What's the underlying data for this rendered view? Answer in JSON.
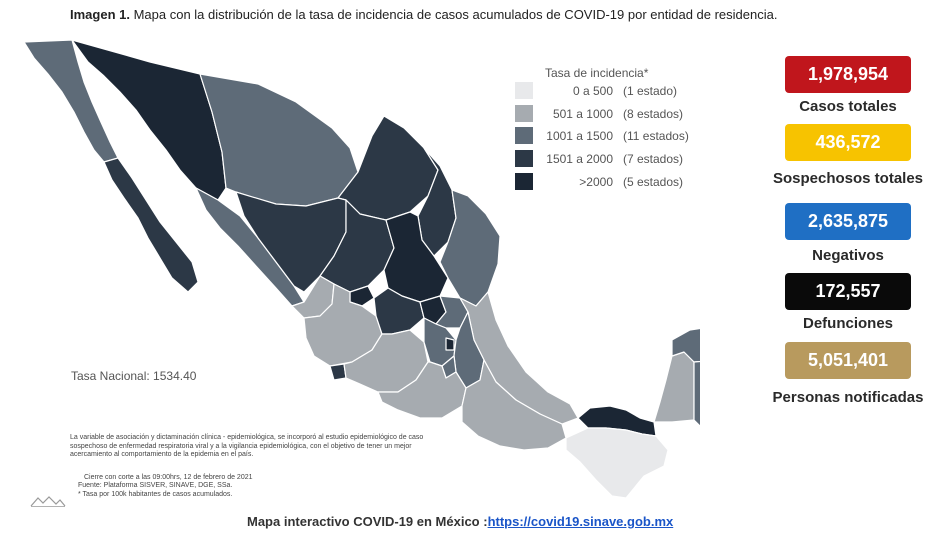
{
  "title": {
    "label": "Imagen 1.",
    "text": "Mapa con la distribución de la tasa de incidencia de casos acumulados de COVID-19 por entidad de residencia."
  },
  "legend": {
    "title": "Tasa de incidencia*",
    "rows": [
      {
        "range": "0 a  500",
        "count": "(1 estado)",
        "color": "#e8e9eb"
      },
      {
        "range": "501 a  1000",
        "count": "(8 estados)",
        "color": "#a6abb0"
      },
      {
        "range": "1001 a  1500",
        "count": "(11 estados)",
        "color": "#5e6b78"
      },
      {
        "range": "1501 a  2000",
        "count": "(7 estados)",
        "color": "#2c3846"
      },
      {
        "range": ">2000",
        "count": "(5 estados)",
        "color": "#1b2634"
      }
    ]
  },
  "stats": [
    {
      "value": "1,978,954",
      "label": "Casos totales",
      "color": "#c0161c"
    },
    {
      "value": "436,572",
      "label": "Sospechosos totales",
      "color": "#f7c300"
    },
    {
      "value": "2,635,875",
      "label": "Negativos",
      "color": "#1f6fc4"
    },
    {
      "value": "172,557",
      "label": "Defunciones",
      "color": "#0a0a0a"
    },
    {
      "value": "5,051,401",
      "label": "Personas notificadas",
      "color": "#b89a5e"
    }
  ],
  "tasa_nacional": "Tasa Nacional: 1534.40",
  "notes": {
    "paragraph": "La variable de asociación y dictaminación clínica - epidemiológica, se incorporó al estudio epidemiológico de caso sospechoso de enfermedad respiratoria viral y a la vigilancia epidemiológica, con el objetivo de tener un mejor acercamiento al comportamiento de la epidemia en el país.",
    "cierre": "Cierre con corte a las 09:00hrs, 12 de febrero de 2021",
    "fuente": "Fuente: Plataforma SISVER, SINAVE, DGE, SSa.",
    "tasa": "* Tasa por 100k habitantes de casos acumulados."
  },
  "footer": {
    "text": "Mapa interactivo COVID-19 en México :",
    "link": "https://covid19.sinave.gob.mx"
  },
  "colors": {
    "level1": "#e8e9eb",
    "level2": "#a6abb0",
    "level3": "#5e6b78",
    "level4": "#2c3846",
    "level5": "#1b2634"
  }
}
